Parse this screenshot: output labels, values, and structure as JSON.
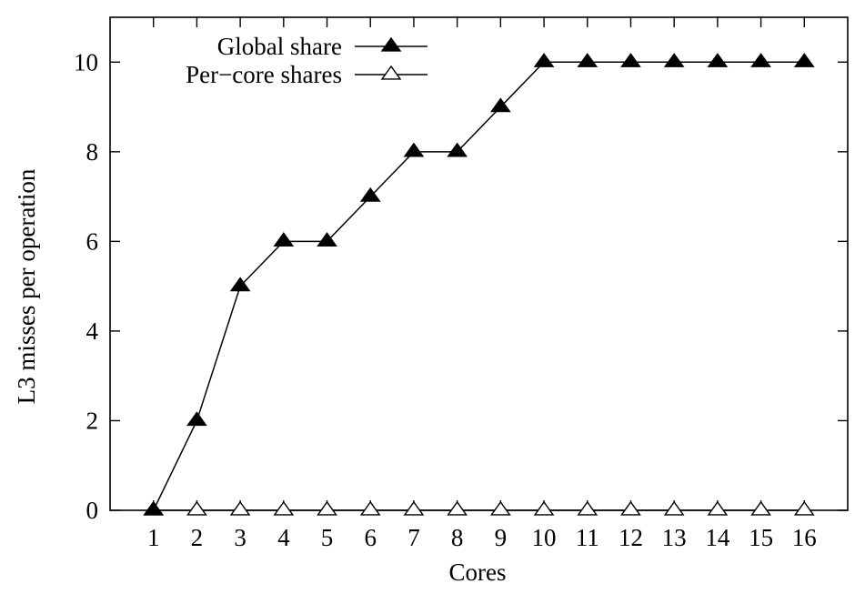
{
  "chart_data": {
    "type": "line",
    "xlabel": "Cores",
    "ylabel": "L3 misses per operation",
    "x": [
      1,
      2,
      3,
      4,
      5,
      6,
      7,
      8,
      9,
      10,
      11,
      12,
      13,
      14,
      15,
      16
    ],
    "xlim": [
      0,
      17
    ],
    "ylim": [
      0,
      11
    ],
    "yticks": [
      0,
      2,
      4,
      6,
      8,
      10
    ],
    "grid": false,
    "legend_position": "top-left",
    "series": [
      {
        "name": "Global share",
        "marker": "filled-triangle",
        "values": [
          0,
          2,
          5,
          6,
          6,
          7,
          8,
          8,
          9,
          10,
          10,
          10,
          10,
          10,
          10,
          10
        ]
      },
      {
        "name": "Per−core shares",
        "marker": "open-triangle",
        "values": [
          0,
          0,
          0,
          0,
          0,
          0,
          0,
          0,
          0,
          0,
          0,
          0,
          0,
          0,
          0,
          0
        ]
      }
    ]
  }
}
